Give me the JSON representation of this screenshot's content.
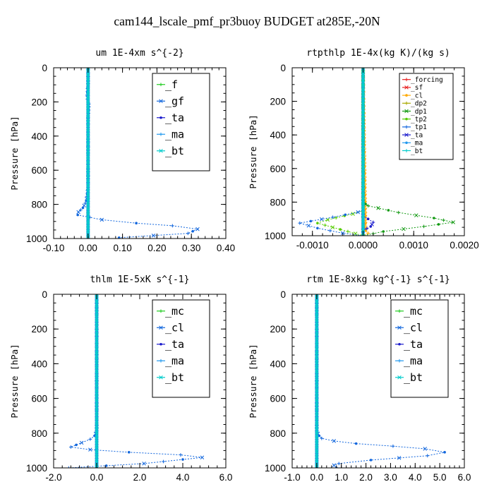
{
  "figure_title": "cam144_lscale_pmf_pr3buoy  BUDGET at285E,-20N",
  "colors": {
    "green": "#22cc22",
    "blue": "#1166dd",
    "navy": "#1a1acc",
    "cyan": "#00cccc",
    "red": "#e82020",
    "orange": "#ffaa00",
    "olive": "#aaaa00",
    "lime": "#55cc00",
    "darkgreen": "#119911",
    "ltblue": "#2299ee"
  },
  "chart_data": [
    {
      "type": "line",
      "title": "um  1E-4xm s^{-2}",
      "ylabel": "Pressure [hPa]",
      "xlim": [
        -0.1,
        0.4
      ],
      "ylim": [
        1000,
        0
      ],
      "xticks": [
        "-0.10",
        "0.00",
        "0.10",
        "0.20",
        "0.30",
        "0.40"
      ],
      "xtick_values": [
        -0.1,
        0.0,
        0.1,
        0.2,
        0.3,
        0.4
      ],
      "yticks": [
        "0",
        "200",
        "400",
        "600",
        "800",
        "1000"
      ],
      "ytick_values": [
        0,
        200,
        400,
        600,
        800,
        1000
      ],
      "legend": [
        "_f",
        "_gf",
        "_ta",
        "_ma",
        "_bt"
      ],
      "legend_location": "upper-right",
      "legend_style": "large",
      "series": [
        {
          "name": "_f",
          "color": "green",
          "x": [
            0,
            0
          ],
          "y": [
            0,
            1000
          ]
        },
        {
          "name": "_gf",
          "color": "blue",
          "x": [
            0.0,
            0.0,
            -0.003,
            0.002,
            0.0,
            0.0,
            0.0,
            0.0,
            0.0,
            -0.005,
            -0.015,
            -0.028,
            -0.03,
            0.04,
            0.14,
            0.245,
            0.318,
            0.29,
            0.09
          ],
          "y": [
            0,
            100,
            160,
            220,
            300,
            400,
            500,
            600,
            700,
            780,
            820,
            845,
            862,
            890,
            910,
            925,
            945,
            970,
            995
          ]
        },
        {
          "name": "_ta",
          "color": "navy",
          "x": [
            0,
            0
          ],
          "y": [
            0,
            1000
          ]
        },
        {
          "name": "_ma",
          "color": "ltblue",
          "x": [
            0,
            0
          ],
          "y": [
            0,
            1000
          ]
        },
        {
          "name": "_bt",
          "color": "cyan",
          "x": [
            0,
            0
          ],
          "y": [
            0,
            1000
          ]
        }
      ]
    },
    {
      "type": "line",
      "title": "rtpthlp  1E-4x(kg K)/(kg s)",
      "ylabel": "Pressure [hPa]",
      "xlim": [
        -0.0014,
        0.002
      ],
      "ylim": [
        1000,
        0
      ],
      "xticks": [
        "-0.0010",
        "0.0000",
        "0.0010",
        "0.0020"
      ],
      "xtick_values": [
        -0.001,
        0.0,
        0.001,
        0.002
      ],
      "yticks": [
        "0",
        "200",
        "400",
        "600",
        "800",
        "1000"
      ],
      "ytick_values": [
        0,
        200,
        400,
        600,
        800,
        1000
      ],
      "legend": [
        "_forcing",
        "_sf",
        "_cl",
        "_dp2",
        "_dp1",
        "_tp2",
        "_tp1",
        "_ta",
        "_ma",
        "_bt"
      ],
      "legend_location": "upper-right",
      "legend_style": "small",
      "series": [
        {
          "name": "_forcing",
          "color": "red",
          "x": [
            0,
            0
          ],
          "y": [
            0,
            1000
          ]
        },
        {
          "name": "_sf",
          "color": "red",
          "x": [
            0,
            0
          ],
          "y": [
            0,
            1000
          ]
        },
        {
          "name": "_cl",
          "color": "orange",
          "x": [
            0,
            5e-05,
            0.0001,
            0
          ],
          "y": [
            0,
            970,
            985,
            1000
          ]
        },
        {
          "name": "_dp2",
          "color": "olive",
          "x": [
            0,
            0
          ],
          "y": [
            0,
            1000
          ]
        },
        {
          "name": "_dp1",
          "color": "darkgreen",
          "x": [
            0.0,
            0.0,
            0.0001,
            0.0007,
            0.0014,
            0.00178,
            0.0012,
            0.0004,
            0.0
          ],
          "y": [
            0,
            800,
            822,
            862,
            895,
            920,
            945,
            975,
            1000
          ]
        },
        {
          "name": "_tp2",
          "color": "lime",
          "x": [
            0.0,
            0.0,
            -0.0002,
            -0.0007,
            -0.0009,
            -0.0006,
            -0.0003,
            0.0
          ],
          "y": [
            0,
            850,
            870,
            905,
            925,
            950,
            975,
            1000
          ]
        },
        {
          "name": "_tp1",
          "color": "blue",
          "x": [
            0.0,
            -0.0001,
            -0.0006,
            -0.00125,
            -0.0009,
            -0.0004,
            0.0
          ],
          "y": [
            850,
            860,
            890,
            925,
            955,
            985,
            1000
          ]
        },
        {
          "name": "_ta",
          "color": "navy",
          "x": [
            0.0,
            0.0001,
            0.0002,
            0.00015,
            0.0
          ],
          "y": [
            880,
            900,
            920,
            945,
            970
          ]
        },
        {
          "name": "_ma",
          "color": "ltblue",
          "x": [
            0,
            0
          ],
          "y": [
            0,
            1000
          ]
        },
        {
          "name": "_bt",
          "color": "cyan",
          "x": [
            0,
            0
          ],
          "y": [
            0,
            1000
          ]
        }
      ]
    },
    {
      "type": "line",
      "title": "thlm  1E-5xK s^{-1}",
      "ylabel": "Pressure [hPa]",
      "xlim": [
        -2.0,
        6.0
      ],
      "ylim": [
        1000,
        0
      ],
      "xticks": [
        "-2.0",
        "0.0",
        "2.0",
        "4.0",
        "6.0"
      ],
      "xtick_values": [
        -2.0,
        0.0,
        2.0,
        4.0,
        6.0
      ],
      "yticks": [
        "0",
        "200",
        "400",
        "600",
        "800",
        "1000"
      ],
      "ytick_values": [
        0,
        200,
        400,
        600,
        800,
        1000
      ],
      "legend": [
        "_mc",
        "_cl",
        "_ta",
        "_ma",
        "_bt"
      ],
      "legend_location": "upper-right",
      "legend_style": "large",
      "series": [
        {
          "name": "_mc",
          "color": "green",
          "x": [
            0,
            0
          ],
          "y": [
            0,
            1000
          ]
        },
        {
          "name": "_cl",
          "color": "blue",
          "x": [
            0.0,
            0.0,
            -0.1,
            -0.3,
            -0.7,
            -1.2,
            -0.3,
            1.5,
            3.9,
            4.9,
            2.2,
            -1.3
          ],
          "y": [
            0,
            790,
            815,
            835,
            855,
            880,
            895,
            910,
            925,
            940,
            975,
            1000
          ]
        },
        {
          "name": "_ta",
          "color": "navy",
          "x": [
            0,
            0
          ],
          "y": [
            0,
            1000
          ]
        },
        {
          "name": "_ma",
          "color": "ltblue",
          "x": [
            0,
            0
          ],
          "y": [
            0,
            1000
          ]
        },
        {
          "name": "_bt",
          "color": "cyan",
          "x": [
            0,
            0
          ],
          "y": [
            0,
            1000
          ]
        }
      ]
    },
    {
      "type": "line",
      "title": "rtm  1E-8xkg kg^{-1} s^{-1}",
      "ylabel": "Pressure [hPa]",
      "xlim": [
        -1.0,
        6.0
      ],
      "ylim": [
        1000,
        0
      ],
      "xticks": [
        "-1.0",
        "0.0",
        "1.0",
        "2.0",
        "3.0",
        "4.0",
        "5.0",
        "6.0"
      ],
      "xtick_values": [
        -1.0,
        0.0,
        1.0,
        2.0,
        3.0,
        4.0,
        5.0,
        6.0
      ],
      "yticks": [
        "0",
        "200",
        "400",
        "600",
        "800",
        "1000"
      ],
      "ytick_values": [
        0,
        200,
        400,
        600,
        800,
        1000
      ],
      "legend": [
        "_mc",
        "_cl",
        "_ta",
        "_ma",
        "_bt"
      ],
      "legend_location": "upper-right",
      "legend_style": "large",
      "series": [
        {
          "name": "_mc",
          "color": "green",
          "x": [
            0,
            0
          ],
          "y": [
            0,
            1000
          ]
        },
        {
          "name": "_cl",
          "color": "blue",
          "x": [
            0.0,
            0.0,
            0.1,
            0.2,
            0.7,
            1.6,
            3.1,
            4.4,
            5.2,
            4.5,
            2.2,
            0.9,
            0.7,
            0.8
          ],
          "y": [
            0,
            790,
            815,
            830,
            845,
            860,
            875,
            890,
            910,
            930,
            955,
            975,
            985,
            1000
          ]
        },
        {
          "name": "_ta",
          "color": "navy",
          "x": [
            0,
            0
          ],
          "y": [
            0,
            1000
          ]
        },
        {
          "name": "_ma",
          "color": "ltblue",
          "x": [
            0,
            0
          ],
          "y": [
            0,
            1000
          ]
        },
        {
          "name": "_bt",
          "color": "cyan",
          "x": [
            0,
            0
          ],
          "y": [
            0,
            1000
          ]
        }
      ]
    }
  ]
}
